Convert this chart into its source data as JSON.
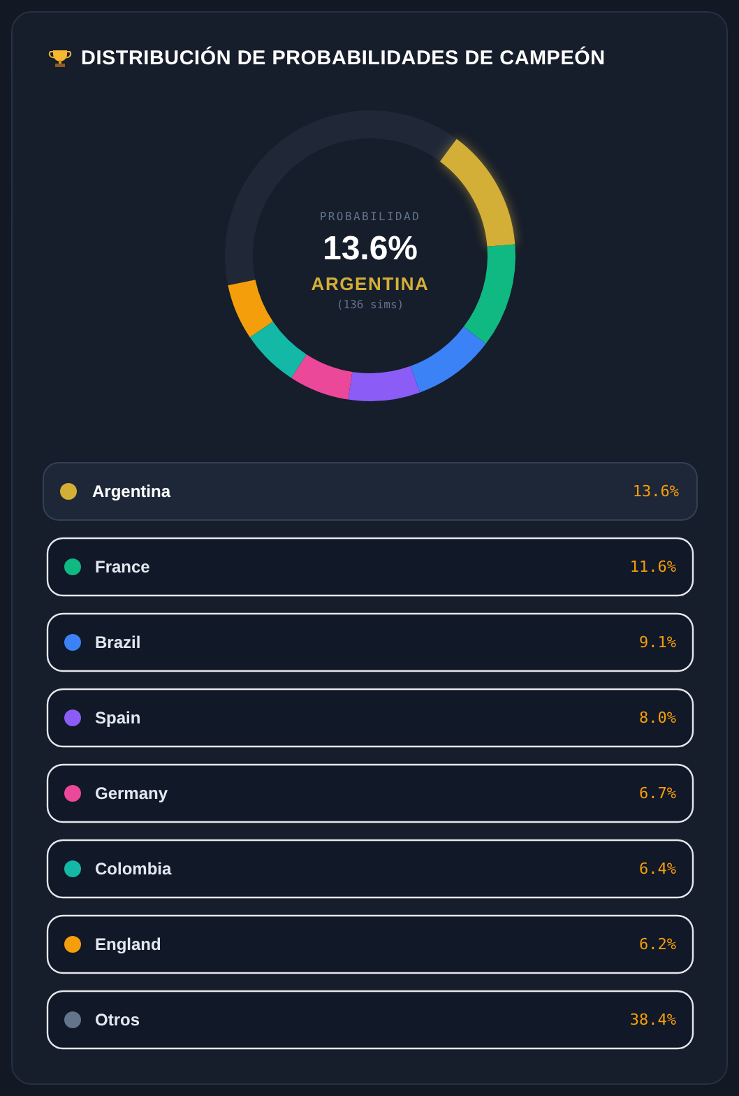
{
  "chart_data": {
    "type": "donut",
    "title": "DISTRIBUCIÓN DE PROBABILIDADES DE CAMPEÓN",
    "categories": [
      "Argentina",
      "France",
      "Brazil",
      "Spain",
      "Germany",
      "Colombia",
      "England",
      "Otros"
    ],
    "values": [
      13.6,
      11.6,
      9.1,
      8.0,
      6.7,
      6.4,
      6.2,
      38.4
    ],
    "colors": [
      "#d4af37",
      "#10b981",
      "#3b82f6",
      "#8b5cf6",
      "#ec4899",
      "#14b8a6",
      "#f59e0b",
      "#64748b"
    ],
    "value_labels": [
      "13.6%",
      "11.6%",
      "9.1%",
      "8.0%",
      "6.7%",
      "6.4%",
      "6.2%",
      "38.4%"
    ],
    "legend": "bottom",
    "annotations": [
      "PROBABILIDAD",
      "13.6%",
      "ARGENTINA",
      "(136 sims)"
    ]
  }
}
